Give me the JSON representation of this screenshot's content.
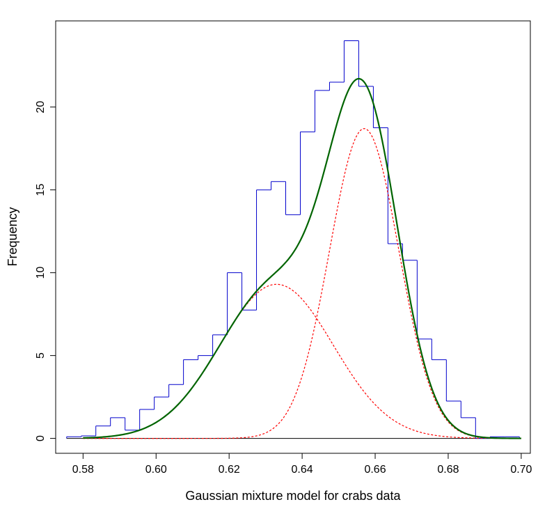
{
  "chart_data": {
    "type": "histogram",
    "xlabel": "Gaussian mixture model for crabs data",
    "ylabel": "Frequency",
    "xlim": [
      0.5725,
      0.7025
    ],
    "ylim": [
      -0.9,
      25.2
    ],
    "x_ticks": [
      0.58,
      0.6,
      0.62,
      0.64,
      0.66,
      0.68,
      0.7
    ],
    "x_tick_labels": [
      "0.58",
      "0.60",
      "0.62",
      "0.64",
      "0.66",
      "0.68",
      "0.70"
    ],
    "y_ticks": [
      0,
      5,
      10,
      15,
      20
    ],
    "y_tick_labels": [
      "0",
      "5",
      "10",
      "15",
      "20"
    ],
    "bin_edges": [
      0.5755,
      0.5795,
      0.5835,
      0.5875,
      0.5915,
      0.5955,
      0.5995,
      0.6035,
      0.6075,
      0.6115,
      0.6155,
      0.6195,
      0.6235,
      0.6275,
      0.6315,
      0.6355,
      0.6395,
      0.6435,
      0.6475,
      0.6515,
      0.6555,
      0.6595,
      0.6635,
      0.6675,
      0.6715,
      0.6755,
      0.6795,
      0.6835,
      0.6875,
      0.6915,
      0.6955,
      0.6995
    ],
    "bin_values": [
      0.1,
      0.15,
      0.75,
      1.25,
      0.5,
      1.75,
      2.5,
      3.25,
      4.75,
      5.0,
      6.25,
      10.0,
      7.75,
      15.0,
      15.5,
      13.5,
      18.5,
      21.0,
      21.5,
      24.0,
      21.25,
      18.75,
      11.75,
      10.75,
      6.0,
      4.75,
      2.25,
      1.25,
      0.0,
      0.1,
      0.1
    ],
    "histogram_color": "#0000cc",
    "components": [
      {
        "mean": 0.633,
        "sd": 0.0155,
        "peak": 9.3,
        "color": "#ff0000",
        "style": "dashed"
      },
      {
        "mean": 0.657,
        "sd": 0.0095,
        "peak": 18.7,
        "color": "#ff0000",
        "style": "dashed"
      }
    ],
    "mixture": {
      "color": "#006400",
      "style": "solid"
    },
    "curve_range": [
      0.58,
      0.7
    ]
  }
}
